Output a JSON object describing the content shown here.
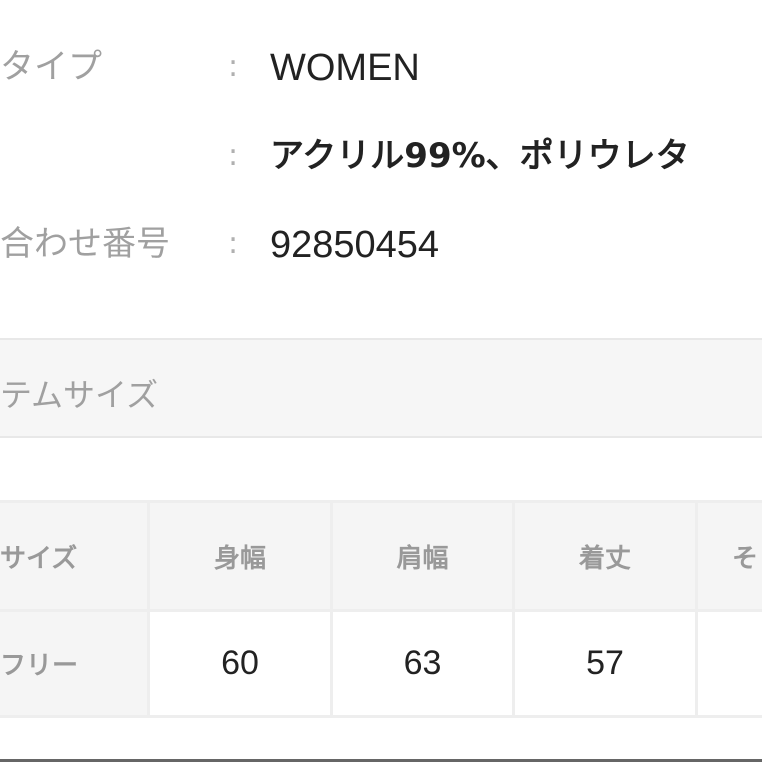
{
  "details": [
    {
      "label": "タイプ",
      "value": "WOMEN"
    },
    {
      "label": "",
      "value": "アクリル99%、ポリウレタ"
    },
    {
      "label": "合わせ番号",
      "value": "92850454"
    }
  ],
  "separator": ":",
  "section_title": "テムサイズ",
  "size_table": {
    "headers": [
      "サイズ",
      "身幅",
      "肩幅",
      "着丈",
      "そ"
    ],
    "rows": [
      {
        "size": "フリー",
        "values": [
          "60",
          "63",
          "57",
          ""
        ]
      }
    ]
  }
}
